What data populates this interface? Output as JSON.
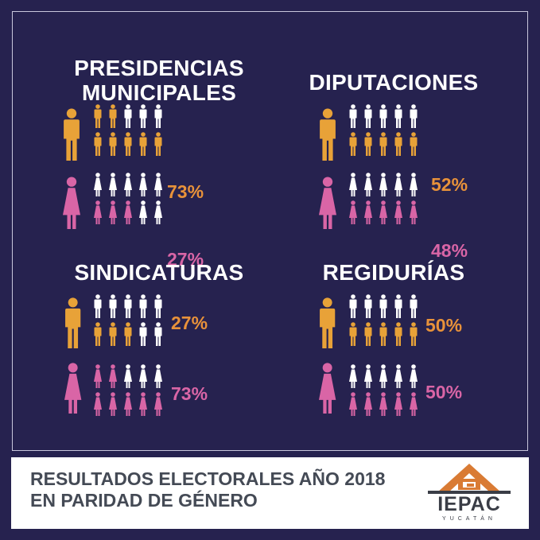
{
  "colors": {
    "background": "#26224f",
    "male": "#e8a238",
    "female": "#d965a6",
    "neutral": "#ffffff",
    "male_text": "#e8923a",
    "female_text": "#d965a6",
    "footer_text": "#444a55"
  },
  "icons": {
    "male": "man-icon",
    "female": "woman-icon"
  },
  "chart_data": [
    {
      "type": "pictogram",
      "title_lines": [
        "PRESIDENCIAS",
        "MUNICIPALES"
      ],
      "categories": [
        "Hombres",
        "Mujeres"
      ],
      "rows": [
        {
          "gender": "male",
          "value": 73,
          "label": "73%"
        },
        {
          "gender": "female",
          "value": 27,
          "label": "27%"
        }
      ]
    },
    {
      "type": "pictogram",
      "title_lines": [
        "DIPUTACIONES"
      ],
      "categories": [
        "Hombres",
        "Mujeres"
      ],
      "rows": [
        {
          "gender": "male",
          "value": 52,
          "label": "52%"
        },
        {
          "gender": "female",
          "value": 48,
          "label": "48%"
        }
      ]
    },
    {
      "type": "pictogram",
      "title_lines": [
        "SINDICATURAS"
      ],
      "categories": [
        "Hombres",
        "Mujeres"
      ],
      "rows": [
        {
          "gender": "male",
          "value": 27,
          "label": "27%"
        },
        {
          "gender": "female",
          "value": 73,
          "label": "73%"
        }
      ]
    },
    {
      "type": "pictogram",
      "title_lines": [
        "REGIDURÍAS"
      ],
      "categories": [
        "Hombres",
        "Mujeres"
      ],
      "rows": [
        {
          "gender": "male",
          "value": 50,
          "label": "50%"
        },
        {
          "gender": "female",
          "value": 50,
          "label": "50%"
        }
      ]
    }
  ],
  "footer": {
    "title_line1": "RESULTADOS ELECTORALES AÑO 2018",
    "title_line2": "EN PARIDAD DE GÉNERO"
  },
  "logo": {
    "name": "IEPAC",
    "subtitle": "YUCATÁN"
  }
}
